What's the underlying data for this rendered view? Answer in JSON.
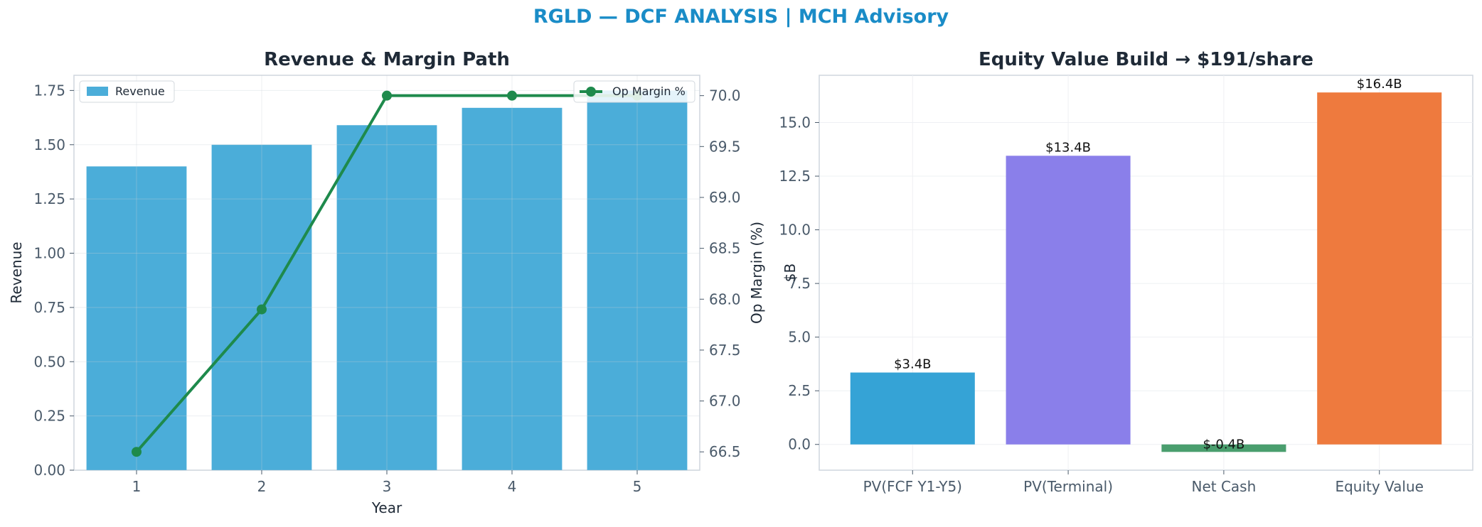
{
  "header": {
    "title": "RGLD — DCF ANALYSIS | MCH Advisory"
  },
  "colors": {
    "title": "#1a8cc7",
    "text": "#1f2a37",
    "tick": "#4a5a6a",
    "axis": "#cfd6de",
    "grid": "#eef0f3",
    "revenue_bar": "#4badd9",
    "op_margin_line": "#1e8a4c",
    "equity_bars": [
      "#35a3d6",
      "#8a7fea",
      "#4a9e6e",
      "#ee7a3e"
    ]
  },
  "chart_data": [
    {
      "type": "bar",
      "title": "Revenue & Margin Path",
      "xlabel": "Year",
      "ylabel": "Revenue",
      "y2label": "Op Margin (%)",
      "categories": [
        "1",
        "2",
        "3",
        "4",
        "5"
      ],
      "ylim": [
        0,
        1.82
      ],
      "yticks": [
        0.0,
        0.25,
        0.5,
        0.75,
        1.0,
        1.25,
        1.5,
        1.75
      ],
      "ytick_labels": [
        "0.00",
        "0.25",
        "0.50",
        "0.75",
        "1.00",
        "1.25",
        "1.50",
        "1.75"
      ],
      "y2lim": [
        66.32,
        70.2
      ],
      "y2ticks": [
        66.5,
        67.0,
        67.5,
        68.0,
        68.5,
        69.0,
        69.5,
        70.0
      ],
      "y2tick_labels": [
        "66.5",
        "67.0",
        "67.5",
        "68.0",
        "68.5",
        "69.0",
        "69.5",
        "70.0"
      ],
      "grid": true,
      "series": [
        {
          "name": "Revenue",
          "type": "bar",
          "values": [
            1.4,
            1.5,
            1.59,
            1.67,
            1.75
          ]
        },
        {
          "name": "Op Margin %",
          "type": "line",
          "axis": "right",
          "values": [
            66.5,
            67.9,
            70.0,
            70.0,
            70.0
          ]
        }
      ],
      "legends": [
        {
          "placement": "upper-left",
          "entries": [
            "Revenue"
          ]
        },
        {
          "placement": "upper-right",
          "entries": [
            "Op Margin %"
          ]
        }
      ]
    },
    {
      "type": "bar",
      "title": "Equity Value Build → $191/share",
      "xlabel": "",
      "ylabel": "$B",
      "categories": [
        "PV(FCF Y1-Y5)",
        "PV(Terminal)",
        "Net Cash",
        "Equity Value"
      ],
      "values": [
        3.35,
        13.45,
        -0.35,
        16.4
      ],
      "data_labels": [
        "$3.4B",
        "$13.4B",
        "$-0.4B",
        "$16.4B"
      ],
      "ylim": [
        -1.2,
        17.2
      ],
      "yticks": [
        0.0,
        2.5,
        5.0,
        7.5,
        10.0,
        12.5,
        15.0
      ],
      "ytick_labels": [
        "0.0",
        "2.5",
        "5.0",
        "7.5",
        "10.0",
        "12.5",
        "15.0"
      ],
      "grid": true
    }
  ]
}
